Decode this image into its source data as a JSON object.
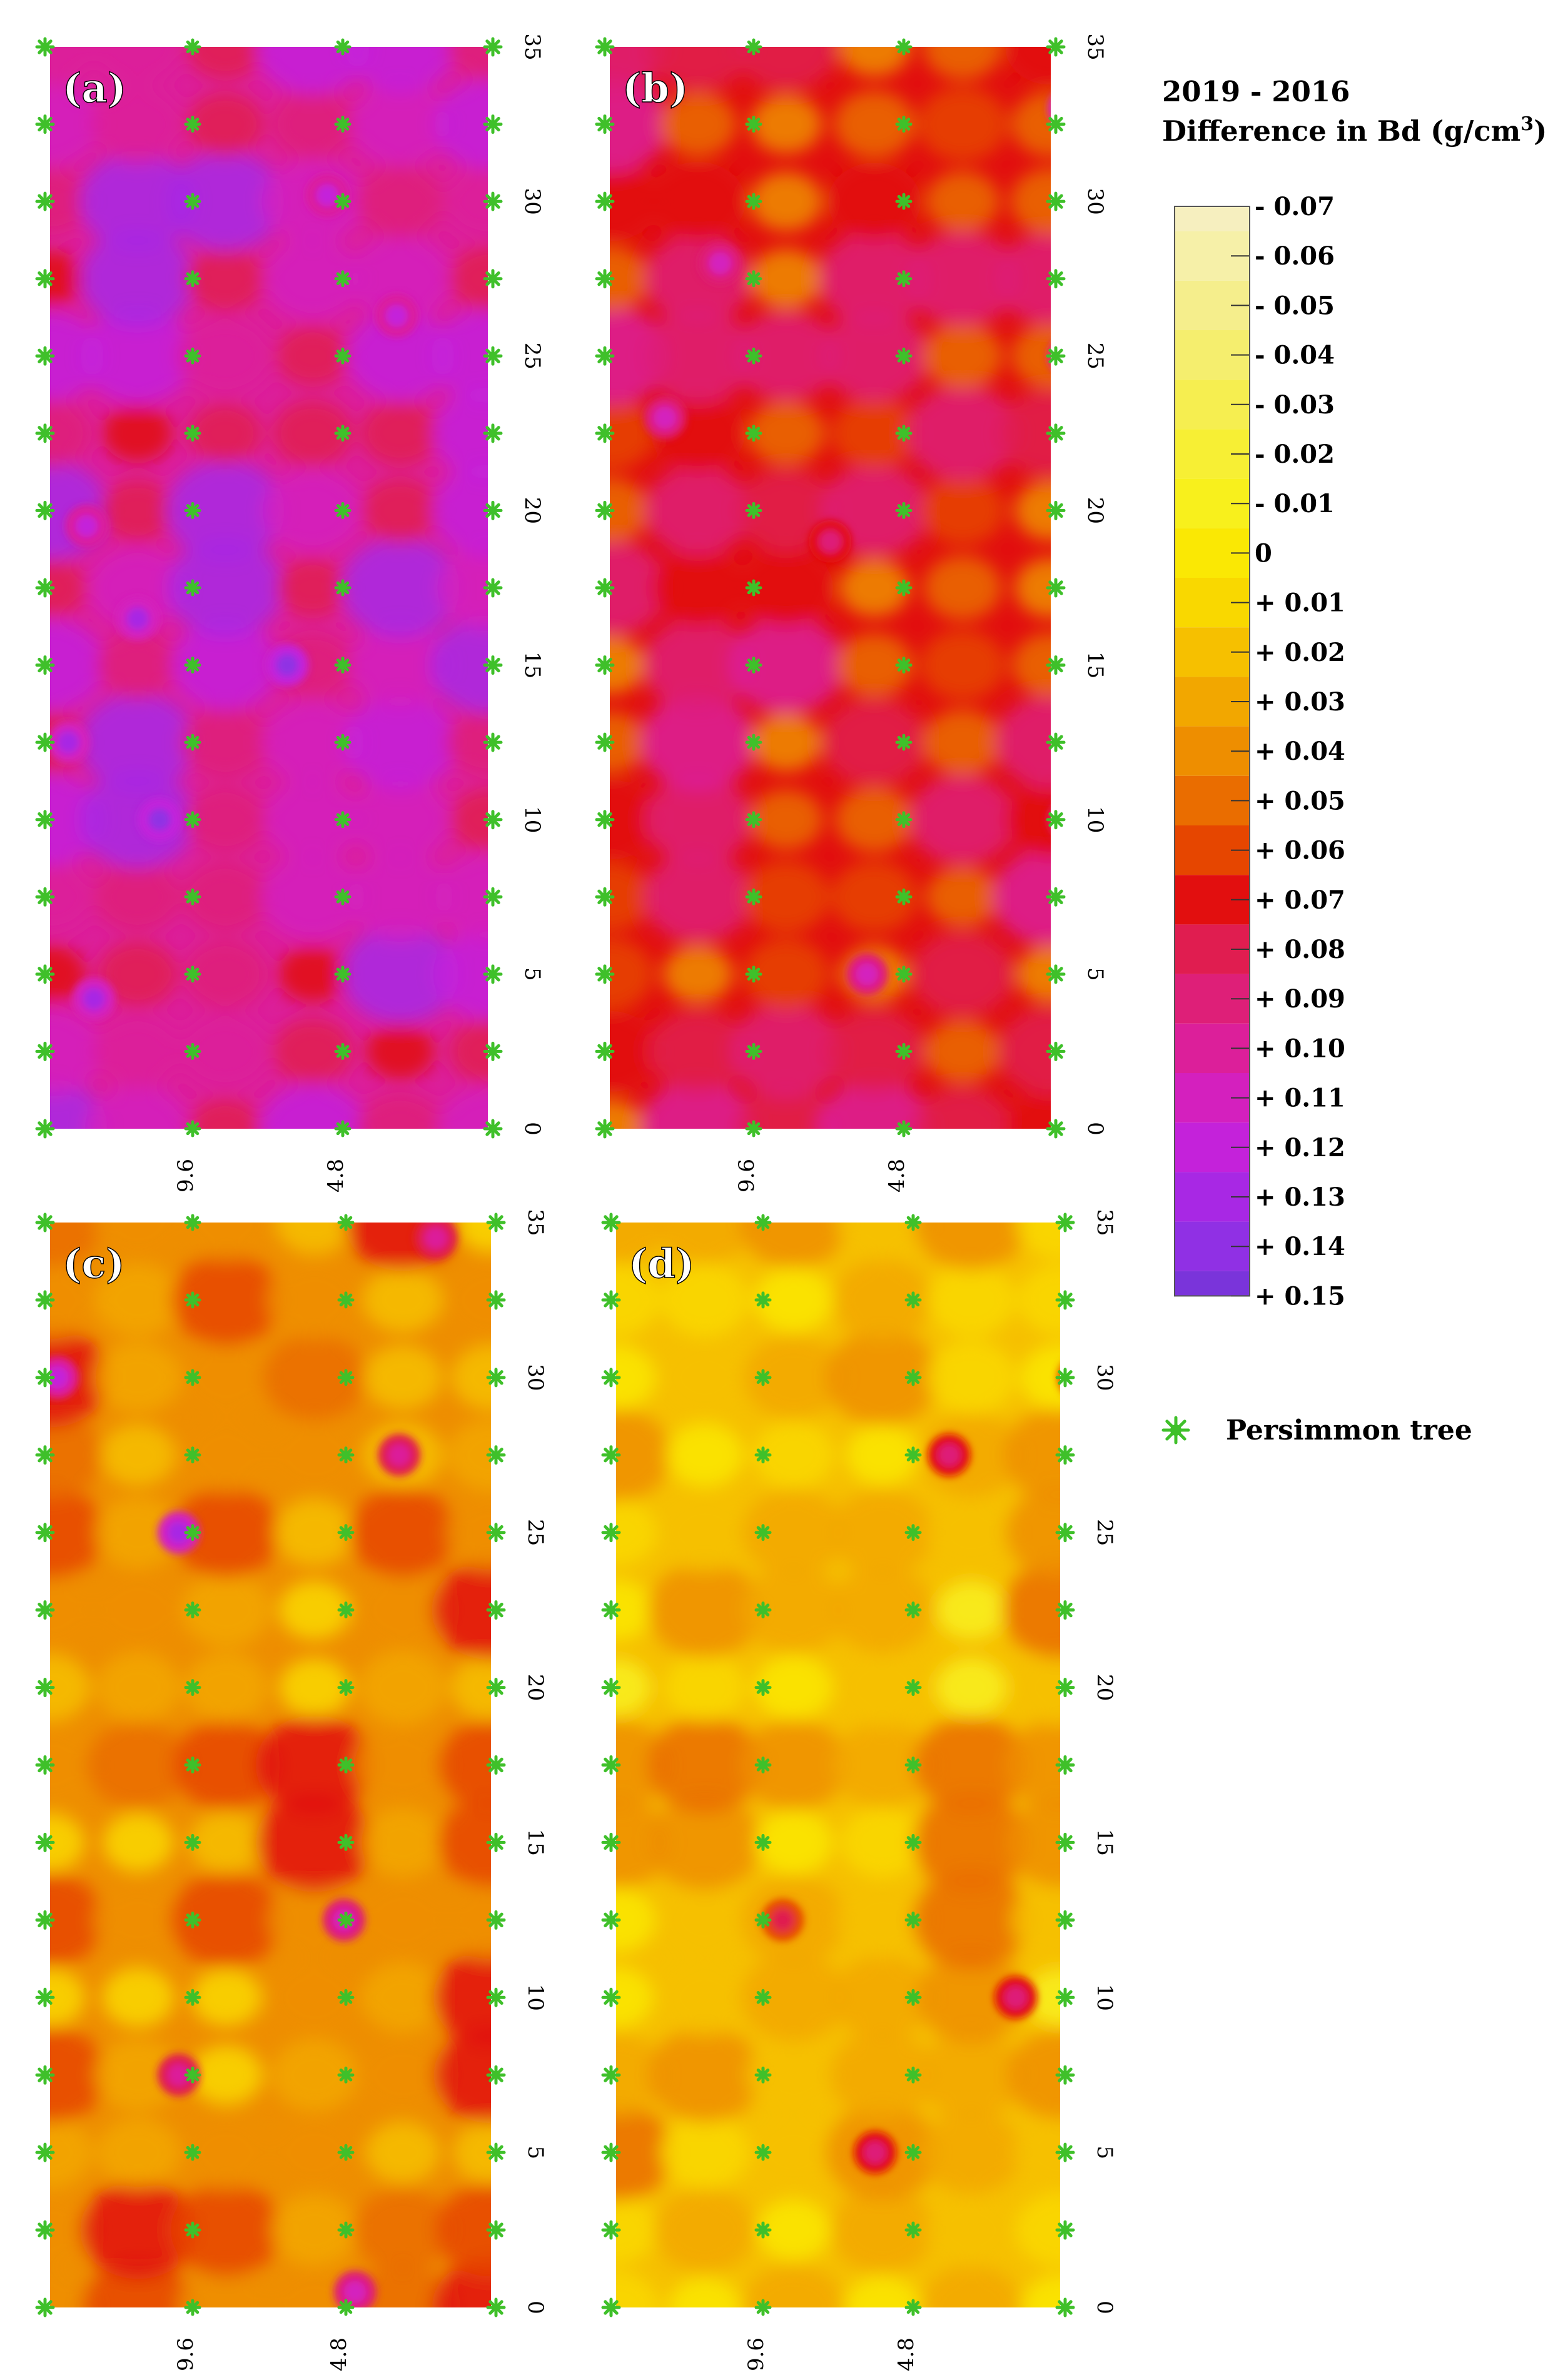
{
  "legend": {
    "title_line1": "2019 - 2016",
    "title_line2": "Difference in  Bd (g/cm",
    "title_sup": "3",
    "title_close": ")",
    "levels": [
      "- 0.07",
      "- 0.06",
      "- 0.05",
      "- 0.04",
      "- 0.03",
      "- 0.02",
      "- 0.01",
      "0",
      "+ 0.01",
      "+ 0.02",
      "+ 0.03",
      "+ 0.04",
      "+ 0.05",
      "+ 0.06",
      "+ 0.07",
      "+ 0.08",
      "+ 0.09",
      "+ 0.10",
      "+ 0.11",
      "+ 0.12",
      "+ 0.13",
      "+ 0.14",
      "+ 0.15"
    ],
    "colors": [
      "#f6efbf",
      "#f6f0a8",
      "#f5ee8c",
      "#f5ee6e",
      "#f6ee50",
      "#f7ef34",
      "#f8f01c",
      "#fae804",
      "#f9d800",
      "#f6c000",
      "#f2a700",
      "#ee8e00",
      "#ea6d00",
      "#e64600",
      "#e20f0f",
      "#e01d50",
      "#de1f78",
      "#dc1f9a",
      "#d420be",
      "#c422da",
      "#a828e4",
      "#9030e4",
      "#7a34da"
    ],
    "marker_label": "Persimmon tree",
    "marker_color": "#3fc02a"
  },
  "chart_data": [
    {
      "type": "heatmap",
      "panel_label": "(a)",
      "y_ticks": [
        "0",
        "5",
        "10",
        "15",
        "20",
        "25",
        "30",
        "35"
      ],
      "x_ticks": [
        "9.6",
        "4.8"
      ],
      "ylim": [
        0,
        35
      ],
      "typical_change": 0.1,
      "hotspots": [
        {
          "x": 1.2,
          "y": 4.2,
          "v": 0.13
        },
        {
          "x": 0.5,
          "y": 12.5,
          "v": 0.13
        },
        {
          "x": 9.5,
          "y": 26.3,
          "v": 0.12
        },
        {
          "x": 6.5,
          "y": 15,
          "v": 0.14
        },
        {
          "x": 3,
          "y": 10,
          "v": 0.14
        },
        {
          "x": 2.4,
          "y": 16.5,
          "v": 0.13
        },
        {
          "x": 7.6,
          "y": 30.2,
          "v": 0.12
        },
        {
          "x": 1,
          "y": 19.5,
          "v": 0.12
        }
      ]
    },
    {
      "type": "heatmap",
      "panel_label": "(b)",
      "y_ticks": [
        "0",
        "5",
        "10",
        "15",
        "20",
        "25",
        "30",
        "35"
      ],
      "x_ticks": [
        "9.6",
        "4.8"
      ],
      "ylim": [
        0,
        35
      ],
      "typical_change": 0.07,
      "hotspots": [
        {
          "x": 12.5,
          "y": 10,
          "v": 0.11
        },
        {
          "x": 12.5,
          "y": 25,
          "v": 0.12
        },
        {
          "x": 12.5,
          "y": 33,
          "v": 0.13
        },
        {
          "x": 7,
          "y": 5,
          "v": 0.11
        },
        {
          "x": 3,
          "y": 28,
          "v": 0.11
        },
        {
          "x": 1.5,
          "y": 23,
          "v": 0.11
        },
        {
          "x": 6,
          "y": 19,
          "v": 0.09
        }
      ]
    },
    {
      "type": "heatmap",
      "panel_label": "(c)",
      "y_ticks": [
        "0",
        "5",
        "10",
        "15",
        "20",
        "25",
        "30",
        "35"
      ],
      "x_ticks": [
        "9.6",
        "4.8"
      ],
      "ylim": [
        0,
        35
      ],
      "typical_change": 0.04,
      "hotspots": [
        {
          "x": 8,
          "y": 12.5,
          "v": 0.11
        },
        {
          "x": 3.5,
          "y": 25,
          "v": 0.13
        },
        {
          "x": 0.2,
          "y": 30,
          "v": 0.12
        },
        {
          "x": 8.3,
          "y": 0.5,
          "v": 0.11
        },
        {
          "x": 10.5,
          "y": 34.5,
          "v": 0.1
        },
        {
          "x": 9.5,
          "y": 27.5,
          "v": 0.1
        },
        {
          "x": 3.5,
          "y": 7.5,
          "v": 0.1
        }
      ]
    },
    {
      "type": "heatmap",
      "panel_label": "(d)",
      "y_ticks": [
        "0",
        "5",
        "10",
        "15",
        "20",
        "25",
        "30",
        "35"
      ],
      "x_ticks": [
        "9.6",
        "4.8"
      ],
      "ylim": [
        0,
        35
      ],
      "typical_change": 0.02,
      "hotspots": [
        {
          "x": 7,
          "y": 5,
          "v": 0.09
        },
        {
          "x": 9,
          "y": 27.5,
          "v": 0.09
        },
        {
          "x": 10.8,
          "y": 10,
          "v": 0.09
        },
        {
          "x": 12.5,
          "y": 30,
          "v": 0.08
        },
        {
          "x": 4.5,
          "y": 12.5,
          "v": 0.08
        }
      ]
    }
  ]
}
